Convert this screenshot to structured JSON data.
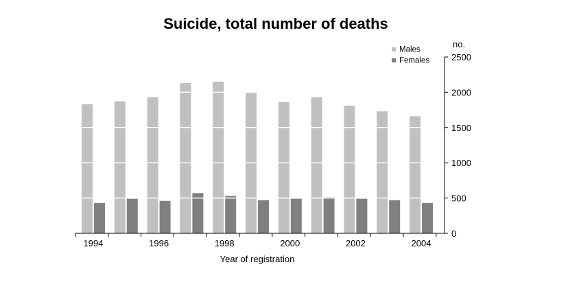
{
  "chart_data": {
    "type": "bar",
    "title": "Suicide, total number of deaths",
    "xlabel": "Year of registration",
    "ylabel": "no.",
    "categories": [
      "1994",
      "1995",
      "1996",
      "1997",
      "1998",
      "1999",
      "2000",
      "2001",
      "2002",
      "2003",
      "2004"
    ],
    "x_tick_labels": [
      "1994",
      "1996",
      "1998",
      "2000",
      "2002",
      "2004"
    ],
    "y_ticks": [
      0,
      500,
      1000,
      1500,
      2000,
      2500
    ],
    "ylim": [
      0,
      2500
    ],
    "grid": false,
    "legend_position": "top-right",
    "series": [
      {
        "name": "Males",
        "color": "#c0c0c0",
        "values": [
          1830,
          1870,
          1930,
          2130,
          2150,
          1990,
          1860,
          1930,
          1810,
          1730,
          1660
        ]
      },
      {
        "name": "Females",
        "color": "#808080",
        "values": [
          430,
          490,
          460,
          570,
          530,
          470,
          490,
          510,
          490,
          470,
          430
        ]
      }
    ]
  }
}
